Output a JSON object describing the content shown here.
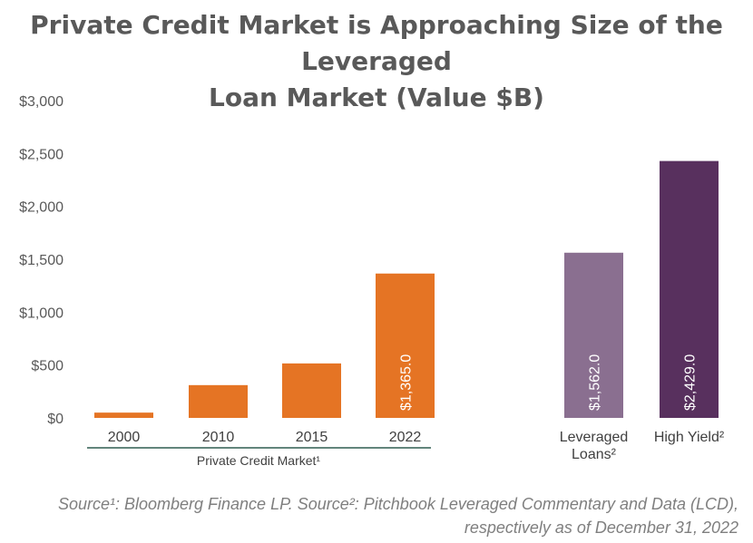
{
  "title_line1": "Private Credit Market is Approaching Size of the Leveraged",
  "title_line2": "Loan Market (Value $B)",
  "source_line1": "Source¹: Bloomberg Finance LP. Source²: Pitchbook Leveraged Commentary and Data (LCD),",
  "source_line2": "respectively as of December 31, 2022",
  "chart_data": {
    "type": "bar",
    "title": "Private Credit Market is Approaching Size of the Leveraged Loan Market (Value $B)",
    "ylim": [
      0,
      3000
    ],
    "yticks": [
      "$0",
      "$500",
      "$1,000",
      "$1,500",
      "$2,000",
      "$2,500",
      "$3,000"
    ],
    "ytick_values": [
      0,
      500,
      1000,
      1500,
      2000,
      2500,
      3000
    ],
    "grid": false,
    "group_label": "Private Credit Market¹",
    "bars": [
      {
        "category": "2000",
        "value": 50,
        "label": "",
        "color": "#e57424"
      },
      {
        "category": "2010",
        "value": 310,
        "label": "",
        "color": "#e57424"
      },
      {
        "category": "2015",
        "value": 515,
        "label": "",
        "color": "#e57424"
      },
      {
        "category": "2022",
        "value": 1365.0,
        "label": "$1,365.0",
        "color": "#e57424"
      },
      {
        "category_line1": "Leveraged",
        "category_line2": "Loans²",
        "value": 1562.0,
        "label": "$1,562.0",
        "color": "#8a6f90"
      },
      {
        "category_line1": "High Yield²",
        "category_line2": "",
        "value": 2429.0,
        "label": "$2,429.0",
        "color": "#58305e"
      }
    ]
  }
}
